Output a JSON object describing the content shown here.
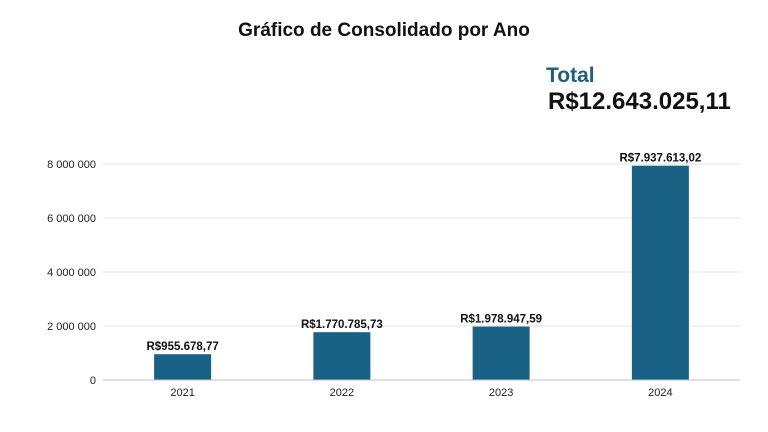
{
  "header": {
    "title": "Gráfico de Consolidado por Ano",
    "total_label": "Total",
    "total_value": "R$12.643.025,11"
  },
  "chart_data": {
    "type": "bar",
    "title": "Gráfico de Consolidado por Ano",
    "categories": [
      "2021",
      "2022",
      "2023",
      "2024"
    ],
    "values": [
      955678.77,
      1770785.73,
      1978947.59,
      7937613.02
    ],
    "data_labels": [
      "R$955.678,77",
      "R$1.770.785,73",
      "R$1.978.947,59",
      "R$7.937.613,02"
    ],
    "y_ticks": [
      0,
      2000000,
      4000000,
      6000000,
      8000000
    ],
    "y_tick_labels": [
      "0",
      "2 000 000",
      "4 000 000",
      "6 000 000",
      "8 000 000"
    ],
    "ylim": [
      0,
      8000000
    ],
    "xlabel": "",
    "ylabel": "",
    "grid": true,
    "bar_color": "#1a6186",
    "accent_color": "#1f5f7a"
  }
}
